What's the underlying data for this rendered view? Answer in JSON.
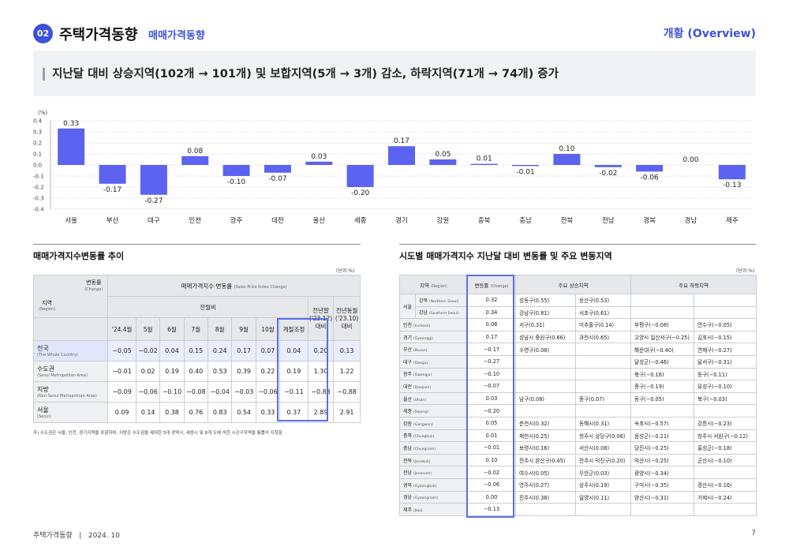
{
  "header": {
    "badge": "02",
    "title": "주택가격동향",
    "subtitle": "매매가격동향",
    "right": "개황 (Overview)"
  },
  "summary": "지난달 대비 상승지역(102개 → 101개) 및 보합지역(5개 → 3개) 감소, 하락지역(71개 → 74개) 증가",
  "chart_data": {
    "type": "bar",
    "unit_label": "(%)",
    "categories": [
      "서울",
      "부산",
      "대구",
      "인천",
      "광주",
      "대전",
      "울산",
      "세종",
      "경기",
      "강원",
      "충북",
      "충남",
      "전북",
      "전남",
      "경북",
      "경남",
      "제주"
    ],
    "values": [
      0.33,
      -0.17,
      -0.27,
      0.08,
      -0.1,
      -0.07,
      0.03,
      -0.2,
      0.17,
      0.05,
      0.01,
      -0.01,
      0.1,
      -0.02,
      -0.06,
      0.0,
      -0.13
    ],
    "value_labels": [
      "0.33",
      "-0.17",
      "-0.27",
      "0.08",
      "-0.10",
      "-0.07",
      "0.03",
      "-0.20",
      "0.17",
      "0.05",
      "0.01",
      "-0.01",
      "0.10",
      "-0.02",
      "-0.06",
      "0.00",
      "-0.13"
    ],
    "ylim": [
      -0.4,
      0.4
    ],
    "yticks": [
      "0.4",
      "0.3",
      "0.2",
      "0.1",
      "0.0",
      "-0.1",
      "-0.2",
      "-0.3",
      "-0.4"
    ],
    "grid": "dotted horizontal",
    "bar_color": "#5b63f0"
  },
  "left_section": {
    "title": "매매가격지수변동률 추이",
    "unit": "(단위:%)",
    "corner_top": "변동률",
    "corner_top_en": "(Change)",
    "corner_bottom": "지역",
    "corner_bottom_en": "(Region)",
    "header_main": "매매가격지수 변동률",
    "header_main_en": "(Sales Price Index Change)",
    "header_mom": "전월비",
    "header_prev_year": "전년말",
    "header_yoy": "전년동월",
    "columns": [
      "'24.4월",
      "5월",
      "6월",
      "7월",
      "8월",
      "9월",
      "10월",
      "계절조정",
      "('23.12)대비",
      "('23.10)대비"
    ],
    "rows": [
      {
        "name": "전국",
        "en": "(The Whole Country)",
        "values": [
          "−0.05",
          "−0.02",
          "0.04",
          "0.15",
          "0.24",
          "0.17",
          "0.07",
          "0.04",
          "0.20",
          "0.13"
        ]
      },
      {
        "name": "수도권",
        "en": "(Seoul Metropolitan Area)",
        "values": [
          "−0.01",
          "0.02",
          "0.19",
          "0.40",
          "0.53",
          "0.39",
          "0.22",
          "0.19",
          "1.30",
          "1.22"
        ]
      },
      {
        "name": "지방",
        "en": "(Non-Seoul Metropolitan Area)",
        "values": [
          "−0.09",
          "−0.06",
          "−0.10",
          "−0.08",
          "−0.04",
          "−0.03",
          "−0.06",
          "−0.11",
          "−0.83",
          "−0.88"
        ]
      },
      {
        "name": "서울",
        "en": "(Seoul)",
        "values": [
          "0.09",
          "0.14",
          "0.38",
          "0.76",
          "0.83",
          "0.54",
          "0.33",
          "0.37",
          "2.89",
          "2.91"
        ]
      }
    ],
    "footnote": "주) 수도권은 서울, 인천, 경기지역을 포함하며, 지방은 수도권을 제외한 5대 광역시, 세종시 및 8개 도에 속한 시군구지역을 통틀어 지칭함"
  },
  "right_section": {
    "title": "시도별 매매가격지수 지난달 대비 변동률 및 주요 변동지역",
    "unit": "(단위:%)",
    "headers": {
      "region": "지역",
      "region_en": "(Region)",
      "change": "변동률",
      "change_en": "(Change)",
      "rise": "주요 상승지역",
      "fall": "주요 하락지역"
    },
    "seoul_label": "서울",
    "rows": [
      {
        "region": "강북",
        "en": "(Northern Seoul)",
        "change": "0.32",
        "r1": "성동구(0.55)",
        "r2": "용산구(0.53)",
        "f1": "",
        "f2": ""
      },
      {
        "region": "강남",
        "en": "(Southern Seoul)",
        "change": "0.34",
        "r1": "강남구(0.81)",
        "r2": "서초구(0.61)",
        "f1": "",
        "f2": ""
      },
      {
        "region": "인천",
        "en": "(Incheon)",
        "change": "0.08",
        "r1": "서구(0.31)",
        "r2": "미추홀구(0.14)",
        "f1": "부평구(−0.08)",
        "f2": "연수구(−0.05)"
      },
      {
        "region": "경기",
        "en": "(Gyeonggi)",
        "change": "0.17",
        "r1": "성남시 중원구(0.66)",
        "r2": "과천시(0.65)",
        "f1": "고양시 일산서구(−0.25)",
        "f2": "김포시(−0.15)"
      },
      {
        "region": "부산",
        "en": "(Busan)",
        "change": "−0.17",
        "r1": "수영구(0.08)",
        "r2": "",
        "f1": "해운대구(−0.40)",
        "f2": "연제구(−0.27)"
      },
      {
        "region": "대구",
        "en": "(Daegu)",
        "change": "−0.27",
        "r1": "",
        "r2": "",
        "f1": "달성군(−0.46)",
        "f2": "달서구(−0.31)"
      },
      {
        "region": "광주",
        "en": "(Gwangju)",
        "change": "−0.10",
        "r1": "",
        "r2": "",
        "f1": "북구(−0.16)",
        "f2": "동구(−0.11)"
      },
      {
        "region": "대전",
        "en": "(Daejeon)",
        "change": "−0.07",
        "r1": "",
        "r2": "",
        "f1": "중구(−0.19)",
        "f2": "유성구(−0.10)"
      },
      {
        "region": "울산",
        "en": "(Ulsan)",
        "change": "0.03",
        "r1": "남구(0.08)",
        "r2": "중구(0.07)",
        "f1": "동구(−0.05)",
        "f2": "북구(−0.03)"
      },
      {
        "region": "세종",
        "en": "(Sejong)",
        "change": "−0.20",
        "r1": "",
        "r2": "",
        "f1": "",
        "f2": ""
      },
      {
        "region": "강원",
        "en": "(Gangwon)",
        "change": "0.05",
        "r1": "춘천시(0.32)",
        "r2": "동해시(0.31)",
        "f1": "속초시(−0.57)",
        "f2": "강릉시(−0.23)"
      },
      {
        "region": "충북",
        "en": "(Chungbuk)",
        "change": "0.01",
        "r1": "제천시(0.25)",
        "r2": "청주시 상당구(0.06)",
        "f1": "음성군(−0.21)",
        "f2": "청주시 서원구(−0.12)"
      },
      {
        "region": "충남",
        "en": "(Chungnam)",
        "change": "−0.01",
        "r1": "보령시(0.16)",
        "r2": "서산시(0.08)",
        "f1": "당진시(−0.25)",
        "f2": "홍성군(−0.18)"
      },
      {
        "region": "전북",
        "en": "(Jeonbuk)",
        "change": "0.10",
        "r1": "전주시 완산구(0.45)",
        "r2": "전주시 덕진구(0.20)",
        "f1": "익산시(−0.25)",
        "f2": "군산시(−0.10)"
      },
      {
        "region": "전남",
        "en": "(Jeonnam)",
        "change": "−0.02",
        "r1": "여수시(0.05)",
        "r2": "무안군(0.03)",
        "f1": "광양시(−0.34)",
        "f2": ""
      },
      {
        "region": "경북",
        "en": "(Gyeongbuk)",
        "change": "−0.06",
        "r1": "영주시(0.27)",
        "r2": "상주시(0.19)",
        "f1": "구미시(−0.35)",
        "f2": "경산시(−0.16)"
      },
      {
        "region": "경남",
        "en": "(Gyeongnam)",
        "change": "0.00",
        "r1": "진주시(0.38)",
        "r2": "밀양시(0.11)",
        "f1": "양산시(−0.31)",
        "f2": "거제시(−0.24)"
      },
      {
        "region": "제주",
        "en": "(Jeju)",
        "change": "−0.13",
        "r1": "",
        "r2": "",
        "f1": "",
        "f2": ""
      }
    ]
  },
  "footer": {
    "left": "주택가격동향   |   2024. 10",
    "page": "7"
  }
}
